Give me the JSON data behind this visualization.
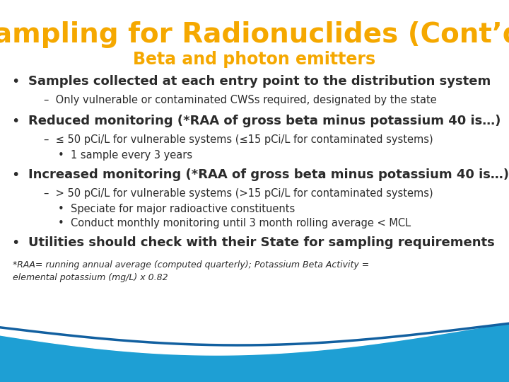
{
  "title": "Sampling for Radionuclides (Cont’d)",
  "subtitle": "Beta and photon emitters",
  "title_color": "#F5A800",
  "subtitle_color": "#F5A800",
  "bg_color": "#FFFFFF",
  "wave_color_light": "#29ABE2",
  "wave_color_dark": "#1565A0",
  "content": [
    {
      "level": 1,
      "bold": true,
      "text": "Samples collected at each entry point to the distribution system"
    },
    {
      "level": 2,
      "bold": false,
      "text": "–  Only vulnerable or contaminated CWSs required, designated by the state"
    },
    {
      "level": 1,
      "bold": true,
      "text": "Reduced monitoring (*RAA of gross beta minus potassium 40 is…)"
    },
    {
      "level": 2,
      "bold": false,
      "text": "–  ≤ 50 pCi/L for vulnerable systems (≤15 pCi/L for contaminated systems)"
    },
    {
      "level": 3,
      "bold": false,
      "text": "•  1 sample every 3 years"
    },
    {
      "level": 1,
      "bold": true,
      "text": "Increased monitoring (*RAA of gross beta minus potassium 40 is…)"
    },
    {
      "level": 2,
      "bold": false,
      "text": "–  > 50 pCi/L for vulnerable systems (>15 pCi/L for contaminated systems)"
    },
    {
      "level": 3,
      "bold": false,
      "text": "•  Speciate for major radioactive constituents"
    },
    {
      "level": 3,
      "bold": false,
      "text": "•  Conduct monthly monitoring until 3 month rolling average < MCL"
    },
    {
      "level": 1,
      "bold": true,
      "text": "Utilities should check with their State for sampling requirements"
    }
  ],
  "footnote": "*RAA= running annual average (computed quarterly); Potassium Beta Activity =\nelemental potassium (mg/L) x 0.82",
  "bullet_char": "•",
  "text_color": "#2B2B2B",
  "title_fontsize": 28,
  "subtitle_fontsize": 17,
  "body_fontsize_l1": 13,
  "body_fontsize_l2": 10.5,
  "body_fontsize_l3": 10.5,
  "footnote_fontsize": 9
}
